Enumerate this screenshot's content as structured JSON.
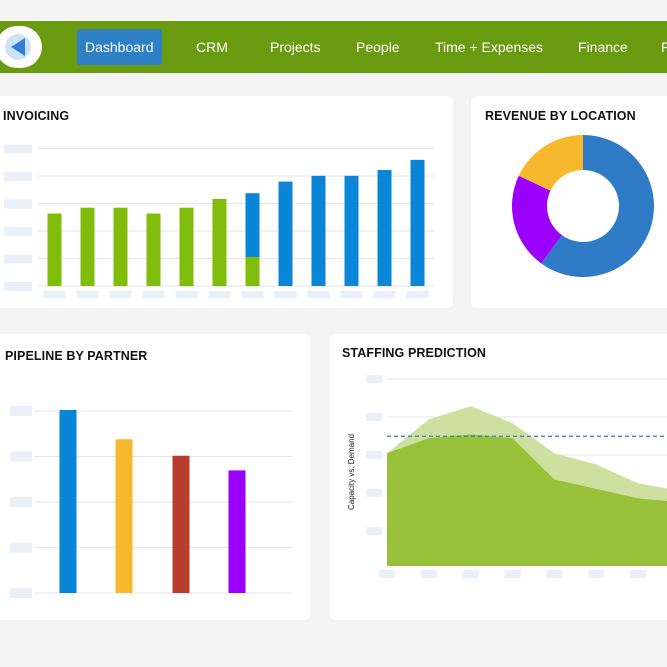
{
  "nav": {
    "items": [
      {
        "label": "Dashboard",
        "active": true
      },
      {
        "label": "CRM"
      },
      {
        "label": "Projects"
      },
      {
        "label": "People"
      },
      {
        "label": "Time + Expenses"
      },
      {
        "label": "Finance"
      },
      {
        "label": "F"
      }
    ],
    "color": "#6a9a10",
    "active_color": "#2f7fc4"
  },
  "cards": {
    "invoicing": {
      "title": "INVOICING"
    },
    "revenue": {
      "title": "REVENUE BY LOCATION"
    },
    "pipeline": {
      "title": "PIPELINE BY PARTNER"
    },
    "staffing": {
      "title": "STAFFING PREDICTION"
    }
  },
  "chart_data": [
    {
      "id": "invoicing",
      "type": "bar",
      "title": "INVOICING",
      "categories": [
        "",
        "",
        "",
        "",
        "",
        "",
        "",
        "",
        "",
        "",
        "",
        ""
      ],
      "series": [
        {
          "color": "#80bc0a",
          "values": [
            50,
            54,
            54,
            50,
            54,
            60,
            20,
            0,
            0,
            0,
            0,
            0
          ]
        },
        {
          "color": "#0a86d8",
          "values": [
            0,
            0,
            0,
            0,
            0,
            0,
            44,
            72,
            76,
            76,
            80,
            87
          ]
        }
      ],
      "stacked": true,
      "ylim": [
        0,
        100
      ],
      "grid": true
    },
    {
      "id": "revenue",
      "type": "pie",
      "title": "REVENUE BY LOCATION",
      "donut": true,
      "values": [
        60,
        22,
        18
      ],
      "colors": [
        "#2f7bc6",
        "#9b00ff",
        "#f6b92e"
      ]
    },
    {
      "id": "pipeline",
      "type": "bar",
      "title": "PIPELINE BY PARTNER",
      "categories": [
        "",
        "",
        "",
        ""
      ],
      "values": [
        100,
        84,
        75,
        67
      ],
      "colors": [
        "#0a86d8",
        "#f6b92e",
        "#b93c2d",
        "#9b00ff"
      ],
      "ylim": [
        0,
        100
      ],
      "grid": true
    },
    {
      "id": "staffing",
      "type": "area",
      "title": "STAFFING PREDICTION",
      "ylabel": "Capacity vs. Demand",
      "x": [
        0,
        1,
        2,
        3,
        4,
        5,
        6,
        7
      ],
      "series": [
        {
          "color": "#cde0a0",
          "values": [
            60,
            78,
            85,
            76,
            60,
            54,
            44,
            40
          ]
        },
        {
          "color": "#98c13a",
          "values": [
            60,
            68,
            70,
            68,
            46,
            41,
            36,
            34
          ]
        }
      ],
      "threshold": 69,
      "threshold_color": "#2f7fc4",
      "ylim": [
        0,
        100
      ],
      "grid": true
    }
  ]
}
